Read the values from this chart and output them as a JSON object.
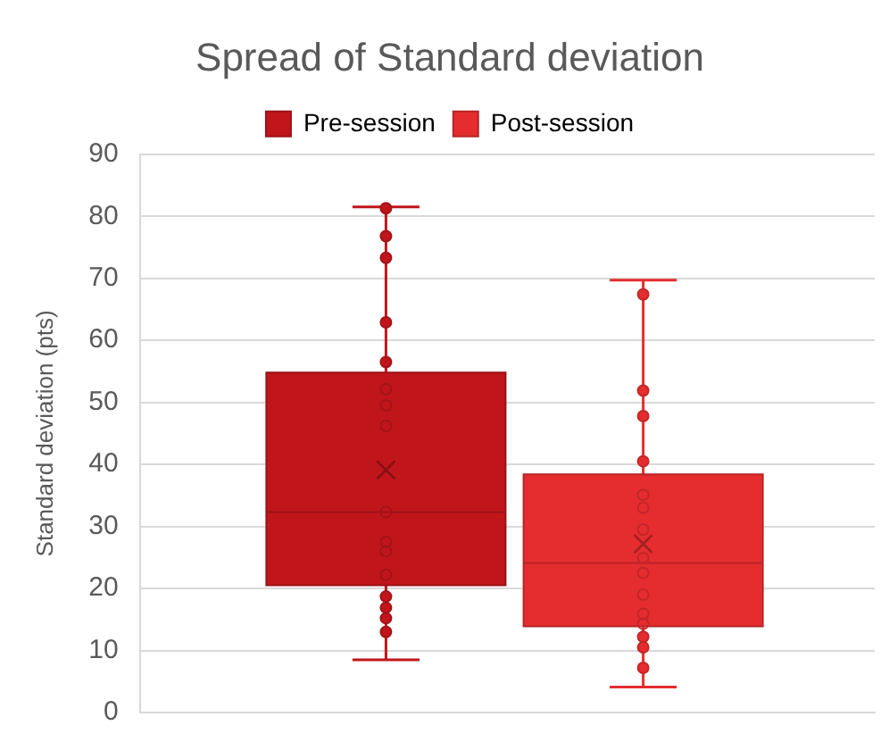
{
  "chart_data": {
    "type": "box",
    "title": "Spread of Standard deviation",
    "ylabel": "Standard deviation (pts)",
    "categories": [
      null
    ],
    "ylim": [
      0,
      90
    ],
    "yticks": [
      0,
      10,
      20,
      30,
      40,
      50,
      60,
      70,
      80,
      90
    ],
    "grid": "y",
    "legend": "top",
    "tick_labels": "y",
    "series": [
      {
        "name": "Pre-session",
        "color": "#c0161b",
        "boxes": [
          {
            "low": 8.5,
            "q1": 20.5,
            "median": 32.3,
            "q3": 54.8,
            "high": 81.5,
            "mean": 39.1,
            "outliers": [
              81.3,
              76.8,
              73.3,
              62.9,
              56.5,
              52.1,
              49.5,
              46.2,
              32.3,
              27.5,
              26.0,
              22.2,
              18.7,
              16.9,
              15.2,
              13.0
            ]
          }
        ]
      },
      {
        "name": "Post-session",
        "color": "#e52d2f",
        "boxes": [
          {
            "low": 4.1,
            "q1": 13.9,
            "median": 24.1,
            "q3": 38.4,
            "high": 69.7,
            "mean": 27.2,
            "outliers": [
              67.4,
              51.9,
              47.8,
              40.5,
              35.1,
              33.0,
              29.5,
              24.9,
              22.5,
              19.0,
              15.9,
              14.3,
              12.2,
              10.5,
              7.2
            ]
          }
        ]
      }
    ]
  }
}
